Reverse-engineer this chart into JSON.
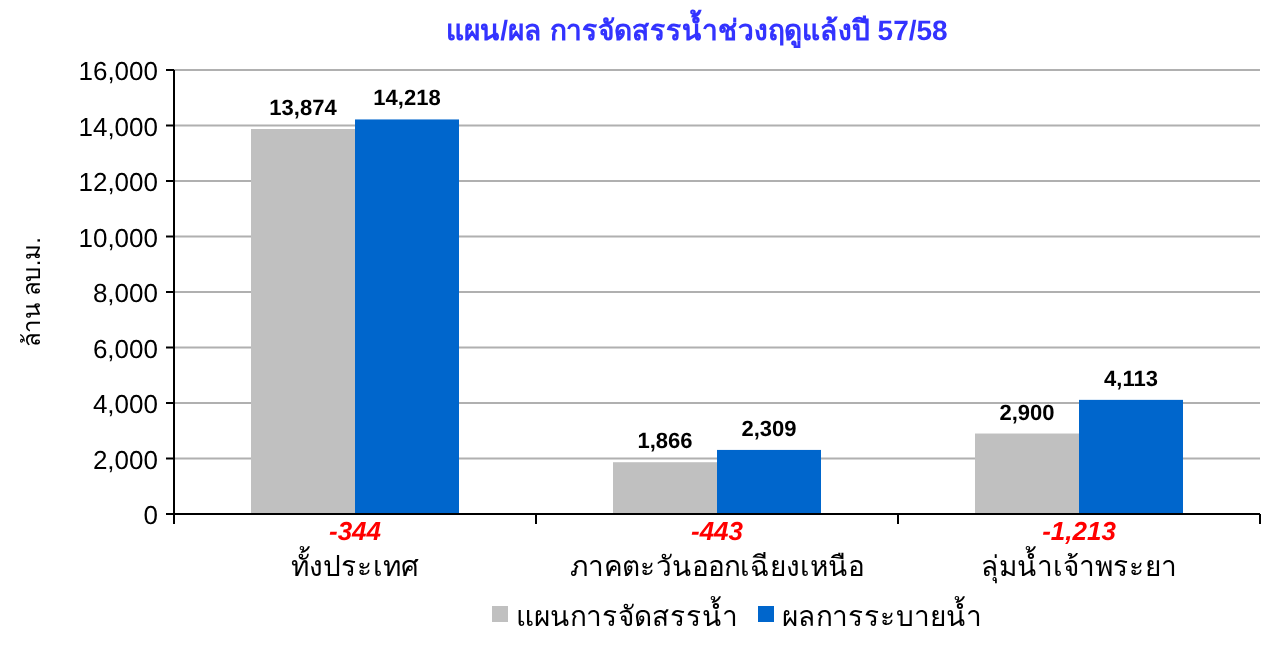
{
  "chart_data": {
    "type": "bar",
    "title": "แผน/ผล การจัดสรรน้ำช่วงฤดูแล้งปี 57/58",
    "ylabel": "ล้าน ลบ.ม.",
    "categories": [
      "ทั้งประเทศ",
      "ภาคตะวันออกเฉียงเหนือ",
      "ลุ่มน้ำเจ้าพระยา"
    ],
    "series": [
      {
        "name": "แผนการจัดสรรน้ำ",
        "color": "#c0c0c0",
        "values": [
          13874,
          1866,
          2900
        ]
      },
      {
        "name": "ผลการระบายน้ำ",
        "color": "#0066cc",
        "values": [
          14218,
          2309,
          4113
        ]
      }
    ],
    "ylim": [
      0,
      16000
    ],
    "yticks": [
      {
        "value": 0,
        "label": "0"
      },
      {
        "value": 2000,
        "label": "2,000"
      },
      {
        "value": 4000,
        "label": "4,000"
      },
      {
        "value": 6000,
        "label": "6,000"
      },
      {
        "value": 8000,
        "label": "8,000"
      },
      {
        "value": 10000,
        "label": "10,000"
      },
      {
        "value": 12000,
        "label": "12,000"
      },
      {
        "value": 14000,
        "label": "14,000"
      },
      {
        "value": 16000,
        "label": "16,000"
      }
    ],
    "value_labels": [
      [
        "13,874",
        "1,866",
        "2,900"
      ],
      [
        "14,218",
        "2,309",
        "4,113"
      ]
    ],
    "annotations": [
      "-344",
      "-443",
      "-1,213"
    ],
    "grid": "y",
    "legend": "bottom"
  }
}
